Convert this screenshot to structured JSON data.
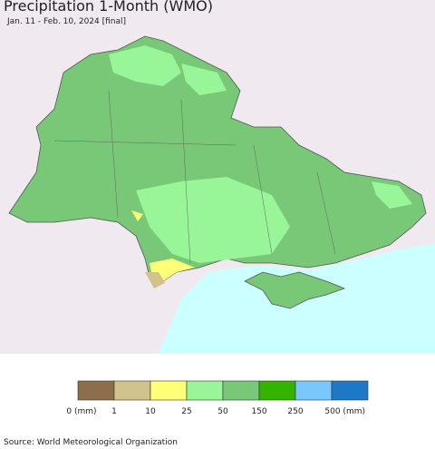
{
  "header": {
    "title": "Precipitation 1-Month (WMO)",
    "subtitle": "Jan. 11 - Feb. 10, 2024 [final]"
  },
  "legend": {
    "colors": [
      "#8c6e4b",
      "#d2c38c",
      "#ffff78",
      "#98f598",
      "#78c878",
      "#32b400",
      "#78c8ff",
      "#1e78c8"
    ],
    "labels": [
      "0 (mm)",
      "1",
      "10",
      "25",
      "50",
      "150",
      "250",
      "500 (mm)"
    ]
  },
  "footer": {
    "source": "Source: World Meteorological Organization"
  }
}
